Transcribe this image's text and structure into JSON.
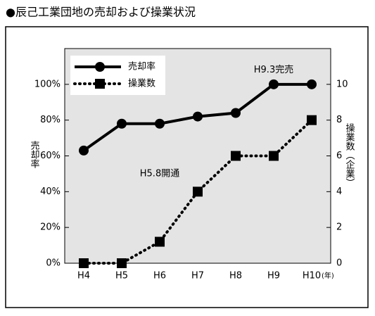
{
  "chart_data": {
    "type": "line",
    "title": "●辰己工業団地の売却および操業状況",
    "categories": [
      "H4",
      "H5",
      "H6",
      "H7",
      "H8",
      "H9",
      "H10"
    ],
    "x_unit": "(年)",
    "ylabel": "売却率",
    "y2label": "操業数（企業）",
    "ylim": [
      0,
      120
    ],
    "yticks": [
      {
        "value": 0,
        "label": "0%"
      },
      {
        "value": 20,
        "label": "20%"
      },
      {
        "value": 40,
        "label": "40%"
      },
      {
        "value": 60,
        "label": "60%"
      },
      {
        "value": 80,
        "label": "80%"
      },
      {
        "value": 100,
        "label": "100%"
      }
    ],
    "y2lim": [
      0,
      12
    ],
    "y2ticks": [
      0,
      2,
      4,
      6,
      8,
      10
    ],
    "series": [
      {
        "name": "売却率",
        "color": "#000000",
        "marker": "circle",
        "style": "solid",
        "values": [
          63,
          78,
          78,
          82,
          84,
          100,
          100
        ]
      },
      {
        "name": "操業数",
        "color": "#000000",
        "marker": "square",
        "style": "dotted",
        "axis": "y2",
        "values": [
          0,
          0,
          1.2,
          4,
          6,
          6,
          8
        ]
      }
    ],
    "annotations": [
      {
        "text": "H9.3完売",
        "category": 5,
        "value": 108
      },
      {
        "text": "H5.8開通",
        "category": 2,
        "value": 50
      }
    ],
    "legend": "upper left",
    "grid": false
  }
}
